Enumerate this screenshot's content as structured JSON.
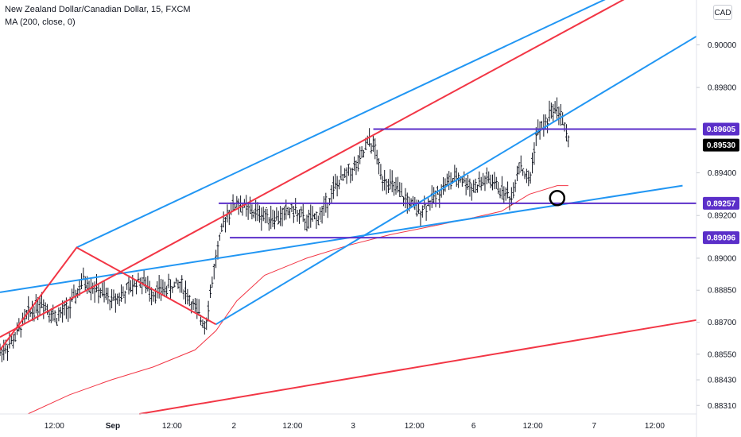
{
  "header": {
    "symbol_line": "New Zealand Dollar/Canadian Dollar, 15, FXCM",
    "indicator_line": "MA (200, close, 0)",
    "currency_button": "CAD"
  },
  "colors": {
    "price_bars": "#131722",
    "moving_average": "#f23645",
    "blue_lines": "#2196f3",
    "red_lines": "#f23645",
    "levels": "#5b2fc9",
    "last_price_badge": "#000000"
  },
  "chart_data": {
    "type": "line",
    "title": "New Zealand Dollar/Canadian Dollar, 15, FXCM",
    "y_axis": {
      "position": "right",
      "range": [
        0.8827,
        0.9021
      ],
      "ticks": [
        "0.90000",
        "0.89800",
        "0.89400",
        "0.89200",
        "0.89000",
        "0.88850",
        "0.88700",
        "0.88550",
        "0.88430",
        "0.88310"
      ]
    },
    "x_axis": {
      "ticks": [
        "12:00",
        "Sep",
        "12:00",
        "2",
        "12:00",
        "3",
        "12:00",
        "6",
        "12:00",
        "7",
        "12:00"
      ],
      "bold_ticks": [
        "Sep"
      ]
    },
    "price_labels": [
      {
        "value": "0.89605",
        "kind": "level"
      },
      {
        "value": "0.89530",
        "kind": "last_price"
      },
      {
        "value": "0.89257",
        "kind": "level"
      },
      {
        "value": "0.89096",
        "kind": "level"
      }
    ],
    "horizontal_levels": [
      {
        "value": 0.89605,
        "from_x": 0.536
      },
      {
        "value": 0.89257,
        "from_x": 0.314
      },
      {
        "value": 0.89096,
        "from_x": 0.33
      }
    ],
    "price_path": [
      [
        0.0,
        0.8856
      ],
      [
        0.02,
        0.8862
      ],
      [
        0.04,
        0.8874
      ],
      [
        0.06,
        0.888
      ],
      [
        0.08,
        0.8872
      ],
      [
        0.1,
        0.8877
      ],
      [
        0.12,
        0.889
      ],
      [
        0.14,
        0.8885
      ],
      [
        0.16,
        0.888
      ],
      [
        0.18,
        0.8884
      ],
      [
        0.2,
        0.889
      ],
      [
        0.22,
        0.8884
      ],
      [
        0.24,
        0.8886
      ],
      [
        0.26,
        0.8888
      ],
      [
        0.28,
        0.8876
      ],
      [
        0.295,
        0.8869
      ],
      [
        0.31,
        0.89
      ],
      [
        0.325,
        0.8921
      ],
      [
        0.34,
        0.8926
      ],
      [
        0.36,
        0.8922
      ],
      [
        0.38,
        0.892
      ],
      [
        0.4,
        0.8919
      ],
      [
        0.42,
        0.8923
      ],
      [
        0.44,
        0.8917
      ],
      [
        0.46,
        0.892
      ],
      [
        0.48,
        0.8933
      ],
      [
        0.5,
        0.894
      ],
      [
        0.515,
        0.8944
      ],
      [
        0.53,
        0.8955
      ],
      [
        0.54,
        0.895
      ],
      [
        0.545,
        0.894
      ],
      [
        0.56,
        0.8935
      ],
      [
        0.58,
        0.8928
      ],
      [
        0.6,
        0.8922
      ],
      [
        0.62,
        0.8927
      ],
      [
        0.64,
        0.8935
      ],
      [
        0.66,
        0.8938
      ],
      [
        0.68,
        0.8933
      ],
      [
        0.7,
        0.8937
      ],
      [
        0.72,
        0.8932
      ],
      [
        0.735,
        0.8928
      ],
      [
        0.745,
        0.8945
      ],
      [
        0.76,
        0.8935
      ],
      [
        0.77,
        0.8958
      ],
      [
        0.785,
        0.8964
      ],
      [
        0.795,
        0.8971
      ],
      [
        0.805,
        0.8968
      ],
      [
        0.812,
        0.8959
      ],
      [
        0.816,
        0.8953
      ]
    ],
    "moving_average": [
      [
        0.04,
        0.8827
      ],
      [
        0.1,
        0.8836
      ],
      [
        0.16,
        0.8843
      ],
      [
        0.22,
        0.8849
      ],
      [
        0.28,
        0.8857
      ],
      [
        0.31,
        0.8866
      ],
      [
        0.34,
        0.888
      ],
      [
        0.38,
        0.8892
      ],
      [
        0.44,
        0.89
      ],
      [
        0.5,
        0.8906
      ],
      [
        0.56,
        0.8911
      ],
      [
        0.62,
        0.8915
      ],
      [
        0.68,
        0.8919
      ],
      [
        0.72,
        0.8922
      ],
      [
        0.76,
        0.893
      ],
      [
        0.8,
        0.8934
      ],
      [
        0.816,
        0.8934
      ]
    ],
    "trend_lines": [
      {
        "color": "blue",
        "points": [
          [
            0.0,
            0.8884
          ],
          [
            0.98,
            0.8934
          ]
        ]
      },
      {
        "color": "blue",
        "points": [
          [
            0.11,
            0.8905
          ],
          [
            0.88,
            0.9023
          ]
        ]
      },
      {
        "color": "blue",
        "points": [
          [
            0.31,
            0.8869
          ],
          [
            1.0,
            0.9004
          ]
        ]
      },
      {
        "color": "red",
        "points": [
          [
            0.0,
            0.8857
          ],
          [
            0.11,
            0.8905
          ],
          [
            0.31,
            0.8869
          ]
        ]
      },
      {
        "color": "red",
        "points": [
          [
            0.0,
            0.8863
          ],
          [
            0.9,
            0.9022
          ]
        ]
      },
      {
        "color": "red",
        "points": [
          [
            0.2,
            0.8827
          ],
          [
            1.0,
            0.8871
          ]
        ]
      }
    ],
    "marker": {
      "shape": "circle",
      "x": 0.8,
      "y": 0.89282
    }
  }
}
